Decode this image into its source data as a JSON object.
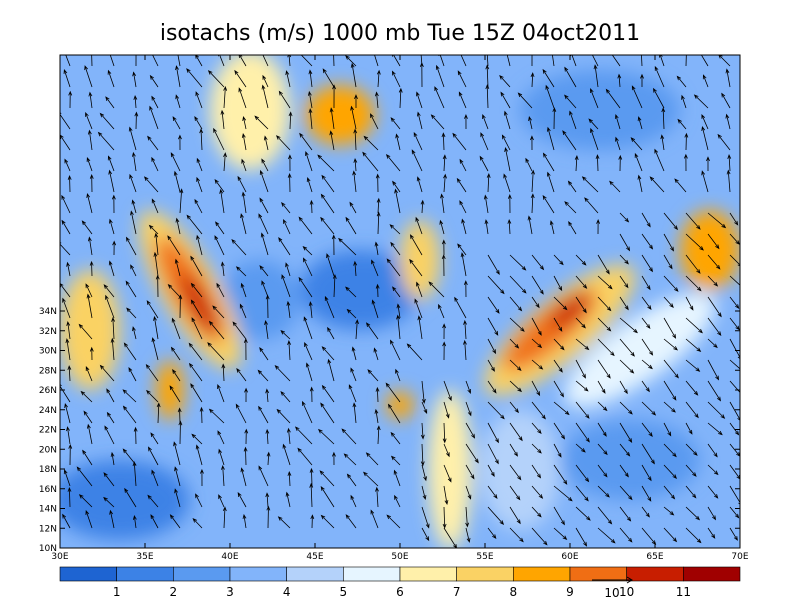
{
  "title": "isotachs (m/s) 1000 mb Tue 15Z 04oct2011",
  "map": {
    "lon_labels": [
      "30E",
      "35E",
      "40E",
      "45E",
      "50E",
      "55E",
      "60E",
      "65E",
      "70E"
    ],
    "lat_labels": [
      "10N",
      "12N",
      "14N",
      "16N",
      "18N",
      "20N",
      "22N",
      "24N",
      "26N",
      "28N",
      "30N",
      "32N",
      "34N"
    ]
  },
  "colorbar": {
    "colors": [
      "#1e64d2",
      "#3c82e6",
      "#5a9af0",
      "#82b4fa",
      "#b4d2fa",
      "#e6f5ff",
      "#fff0aa",
      "#fad264",
      "#ffa500",
      "#f06e14",
      "#c81e00",
      "#a00000"
    ],
    "labels": [
      "1",
      "2",
      "3",
      "4",
      "5",
      "6",
      "7",
      "8",
      "9",
      "10",
      "11"
    ]
  },
  "vector_reference": {
    "label": "10"
  }
}
